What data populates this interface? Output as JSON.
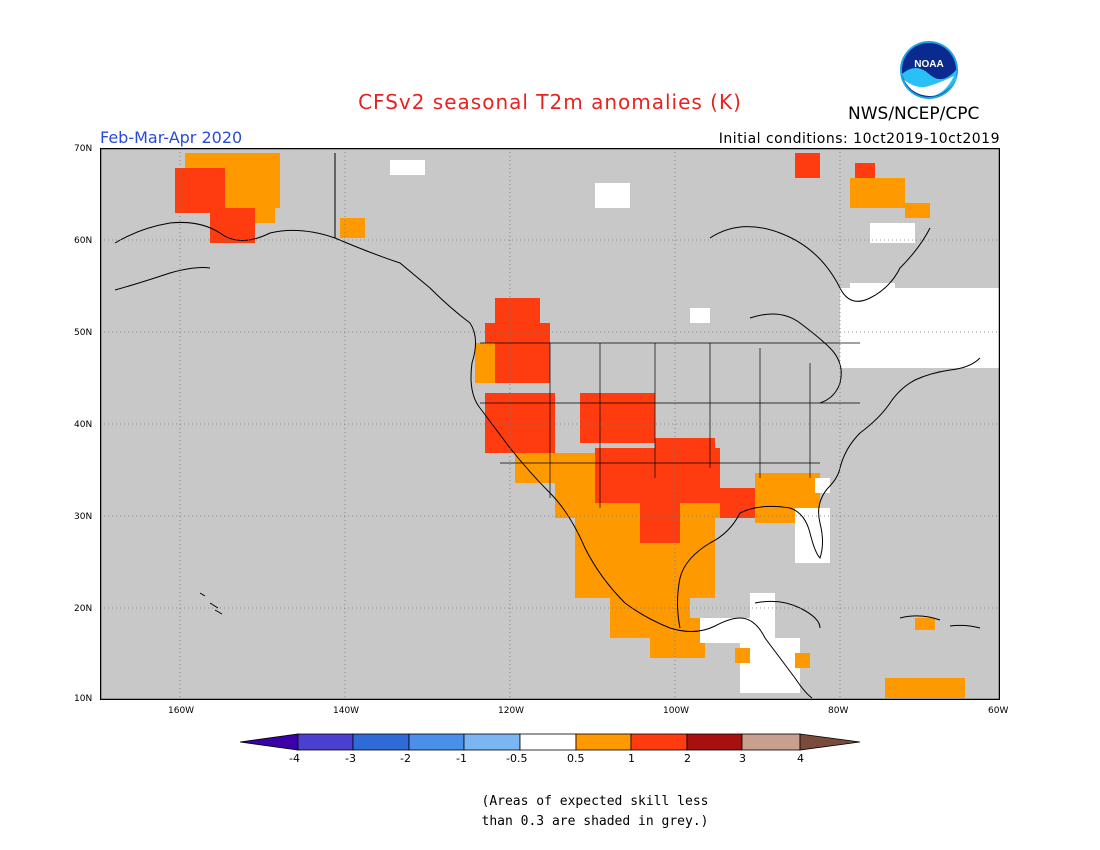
{
  "header": {
    "title": "CFSv2 seasonal T2m anomalies (K)",
    "period": "Feb-Mar-Apr 2020",
    "initial_conditions": "Initial conditions: 10ct2019-10ct2019",
    "credit": "NWS/NCEP/CPC",
    "logo_text": "NOAA"
  },
  "map": {
    "lat_labels": [
      "70N",
      "60N",
      "50N",
      "40N",
      "30N",
      "20N",
      "10N"
    ],
    "lon_labels": [
      "160W",
      "140W",
      "120W",
      "100W",
      "80W",
      "60W"
    ],
    "background_color": "#c8c8c8"
  },
  "colorbar": {
    "ticks": [
      "-4",
      "-3",
      "-2",
      "-1",
      "-0.5",
      "0.5",
      "1",
      "2",
      "3",
      "4"
    ],
    "colors": [
      "#3b00a8",
      "#4a3fd0",
      "#2e6bd6",
      "#4a90ea",
      "#7ab6f2",
      "#ffffff",
      "#ff9900",
      "#ff3c0f",
      "#a80f0f",
      "#c9a08e",
      "#7a4a3a"
    ]
  },
  "note": {
    "line1": "(Areas of expected skill less",
    "line2": "than 0.3 are shaded in grey.)"
  }
}
